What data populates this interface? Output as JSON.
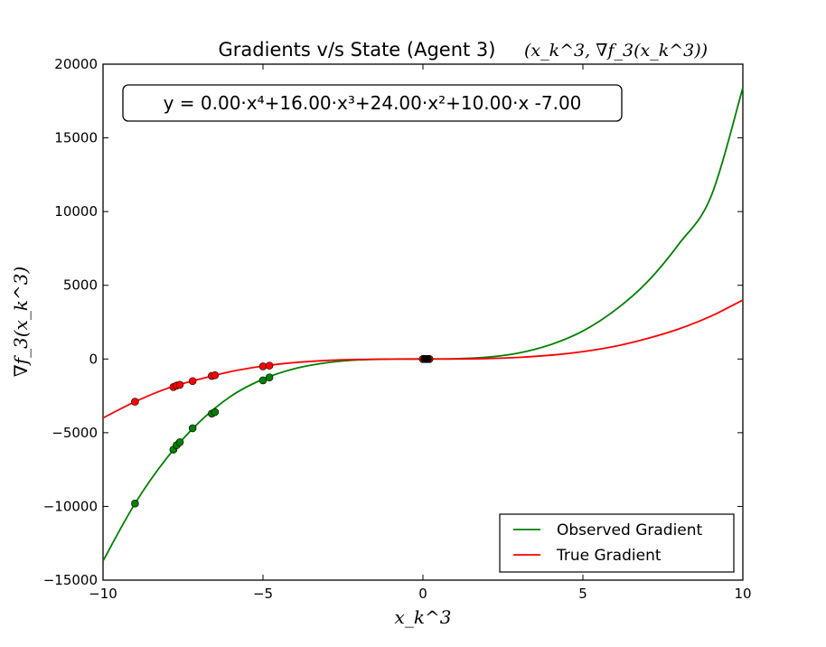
{
  "chart_data": {
    "type": "line",
    "title": "Gradients v/s State (Agent 3)",
    "title_math": "(x_k^3, ∇f_3(x_k^3))",
    "xlabel": "x_k^3",
    "ylabel": "∇f_3(x_k^3)",
    "xlim": [
      -10,
      10
    ],
    "ylim": [
      -15000,
      20000
    ],
    "x_ticks": [
      -10,
      -5,
      0,
      5,
      10
    ],
    "x_tick_labels": [
      "−10",
      "−5",
      "0",
      "5",
      "10"
    ],
    "y_ticks": [
      -15000,
      -10000,
      -5000,
      0,
      5000,
      10000,
      15000,
      20000
    ],
    "y_tick_labels": [
      "−15000",
      "−10000",
      "−5000",
      "0",
      "5000",
      "10000",
      "15000",
      "20000"
    ],
    "equation_label": "y = 0.00·x⁴+16.00·x³+24.00·x²+10.00·x -7.00",
    "grid": false,
    "legend_position": "bottom-right",
    "series": [
      {
        "name": "Observed Gradient",
        "color": "#008000",
        "curve": {
          "x": [
            -10,
            -9,
            -8,
            -7,
            -6,
            -5,
            -4,
            -3,
            -2,
            -1,
            0,
            1,
            2,
            3,
            4,
            5,
            6,
            7,
            8,
            9,
            10
          ],
          "y": [
            -13700,
            -9800,
            -6700,
            -4300,
            -2520,
            -1370,
            -650,
            -250,
            -60,
            -5,
            0,
            15,
            120,
            410,
            980,
            1900,
            3300,
            5200,
            7800,
            11000,
            18400
          ]
        },
        "points": {
          "x": [
            -9.0,
            -7.8,
            -7.7,
            -7.6,
            -7.2,
            -6.6,
            -6.5,
            -5.0,
            -4.8,
            0.0,
            0.1,
            0.2
          ],
          "y": [
            -9800,
            -6150,
            -5850,
            -5650,
            -4700,
            -3700,
            -3600,
            -1450,
            -1250,
            0,
            0,
            0
          ]
        }
      },
      {
        "name": "True Gradient",
        "color": "#ff0000",
        "curve": {
          "x": [
            -10,
            -9,
            -8,
            -7,
            -6,
            -5,
            -4,
            -3,
            -2,
            -1,
            0,
            1,
            2,
            3,
            4,
            5,
            6,
            7,
            8,
            9,
            10
          ],
          "y": [
            -4000,
            -2900,
            -2000,
            -1380,
            -850,
            -480,
            -240,
            -100,
            -30,
            -4,
            0,
            4,
            30,
            110,
            260,
            500,
            860,
            1380,
            2040,
            2900,
            4000
          ]
        },
        "points": {
          "x": [
            -9.0,
            -7.8,
            -7.7,
            -7.6,
            -7.2,
            -6.6,
            -6.5,
            -5.0,
            -4.8,
            0.0,
            0.1,
            0.2
          ],
          "y": [
            -2900,
            -1900,
            -1800,
            -1750,
            -1500,
            -1150,
            -1100,
            -500,
            -450,
            0,
            0,
            0
          ]
        }
      }
    ],
    "extra_points": {
      "color": "#000000",
      "x": [
        0.05,
        0.15
      ],
      "y": [
        0,
        0
      ]
    }
  }
}
